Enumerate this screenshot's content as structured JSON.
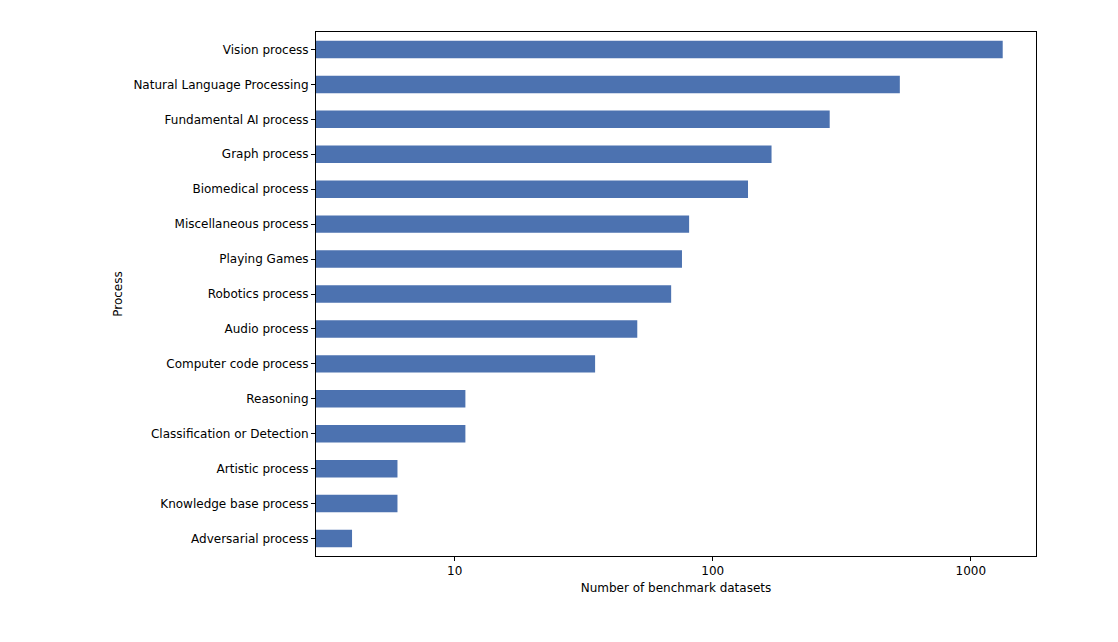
{
  "chart_data": {
    "type": "bar",
    "orientation": "horizontal",
    "log": "x",
    "categories": [
      "Vision process",
      "Natural Language Processing",
      "Fundamental AI process",
      "Graph process",
      "Biomedical process",
      "Miscellaneous process",
      "Playing Games",
      "Robotics process",
      "Audio process",
      "Computer code process",
      "Reasoning",
      "Classification or Detection",
      "Artistic process",
      "Knowledge base process",
      "Adversarial process"
    ],
    "values": [
      1330,
      531,
      284,
      169,
      137,
      81,
      76,
      69,
      51,
      35,
      11,
      11,
      6,
      6,
      4
    ],
    "color": "#4c72b0",
    "x_label": "Number of benchmark datasets",
    "y_label": "Process",
    "xlim": [
      2.9,
      1790
    ],
    "xticks": [
      10,
      100,
      1000
    ],
    "grid": false
  }
}
